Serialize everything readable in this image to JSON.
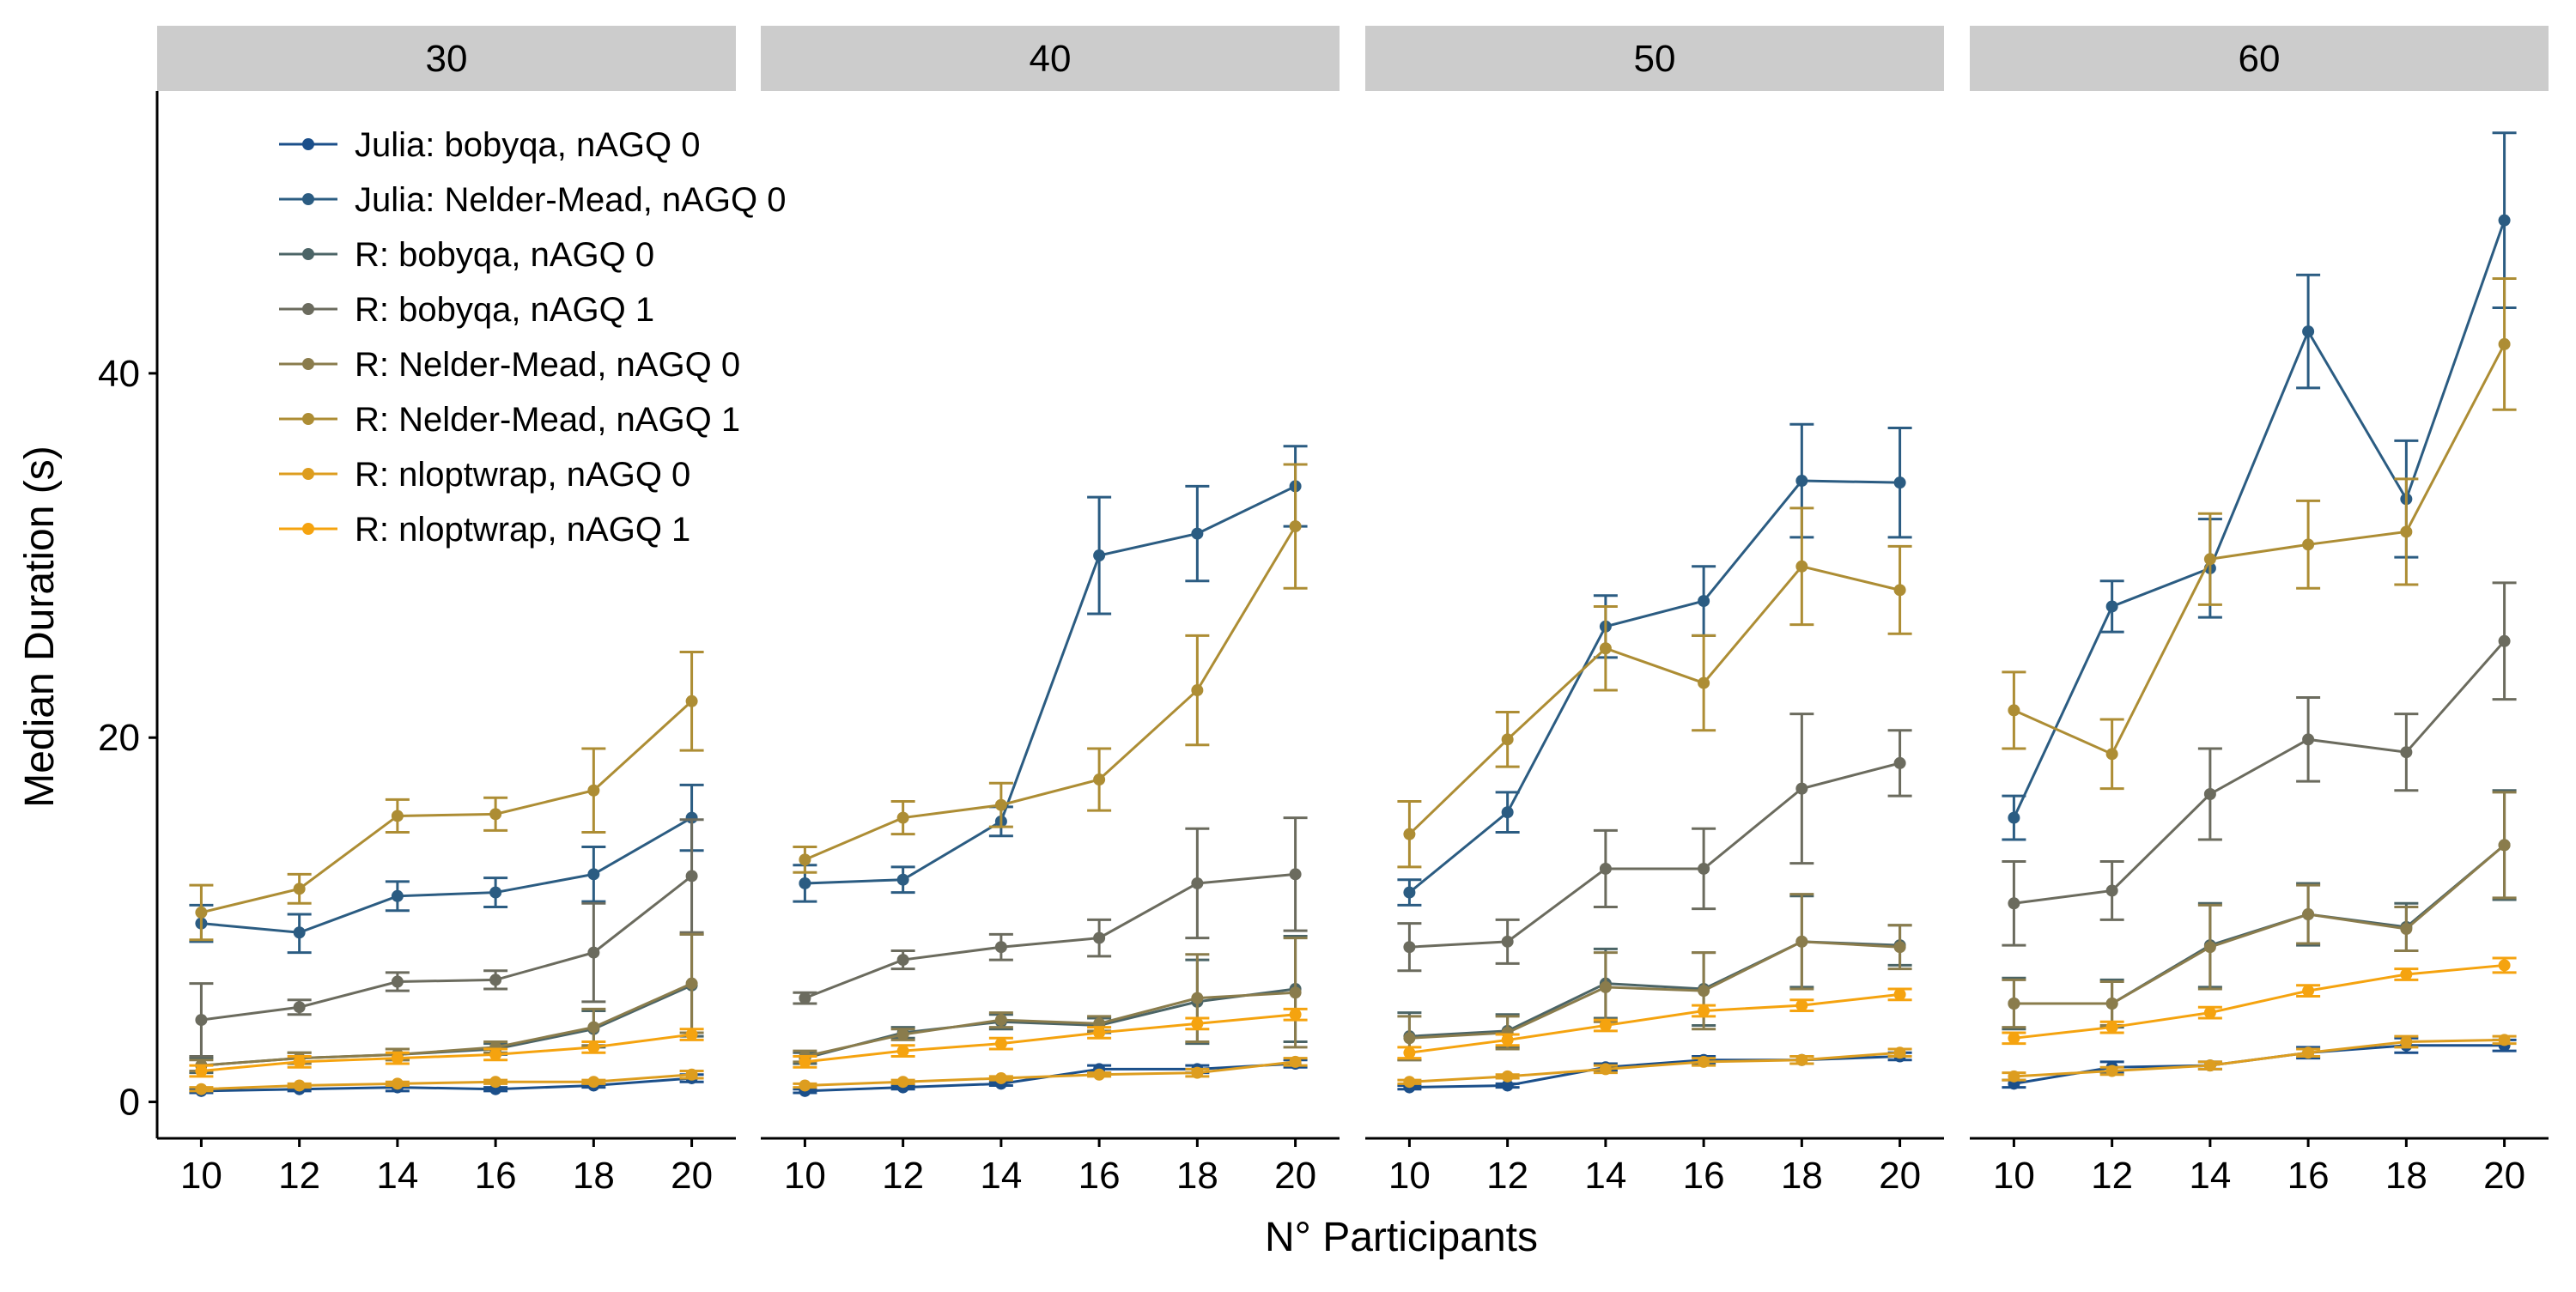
{
  "chart_data": {
    "type": "line",
    "xlabel": "N° Participants",
    "ylabel": "Median Duration (s)",
    "xlim": [
      9.1,
      20.9
    ],
    "ylim": [
      -2,
      55.5
    ],
    "x_ticks": [
      10,
      12,
      14,
      16,
      18,
      20
    ],
    "y_ticks": [
      0,
      20,
      40
    ],
    "x": [
      10,
      12,
      14,
      16,
      18,
      20
    ],
    "legend_position": "top-left",
    "panels": [
      {
        "label": "30",
        "series": [
          {
            "name": "Julia: bobyqa, nAGQ 0",
            "color": "#1b4f8a",
            "values": [
              0.6,
              0.7,
              0.8,
              0.7,
              0.9,
              1.3
            ],
            "err_lo": [
              0.5,
              0.6,
              0.6,
              0.6,
              0.8,
              1.1
            ],
            "err_hi": [
              0.7,
              0.8,
              0.9,
              0.8,
              1.0,
              1.5
            ]
          },
          {
            "name": "Julia: Nelder-Mead, nAGQ 0",
            "color": "#2b5c82",
            "values": [
              9.8,
              9.3,
              11.3,
              11.5,
              12.5,
              15.6
            ],
            "err_lo": [
              8.8,
              8.2,
              10.5,
              10.7,
              11.0,
              13.8
            ],
            "err_hi": [
              10.8,
              10.3,
              12.1,
              12.3,
              14.0,
              17.4
            ]
          },
          {
            "name": "R: bobyqa, nAGQ 0",
            "color": "#4b6466",
            "values": [
              2.0,
              2.4,
              2.6,
              2.9,
              4.0,
              6.4
            ],
            "err_lo": [
              1.6,
              2.1,
              2.3,
              2.6,
              3.0,
              3.6
            ],
            "err_hi": [
              2.4,
              2.7,
              2.9,
              3.2,
              5.0,
              9.2
            ]
          },
          {
            "name": "R: bobyqa, nAGQ 1",
            "color": "#6b6b5e",
            "values": [
              4.5,
              5.2,
              6.6,
              6.7,
              8.2,
              12.4
            ],
            "err_lo": [
              2.5,
              4.8,
              6.1,
              6.2,
              5.5,
              9.3
            ],
            "err_hi": [
              6.5,
              5.6,
              7.1,
              7.2,
              10.9,
              15.5
            ]
          },
          {
            "name": "R: Nelder-Mead, nAGQ 0",
            "color": "#8a7c4c",
            "values": [
              2.0,
              2.4,
              2.6,
              3.0,
              4.1,
              6.5
            ],
            "err_lo": [
              1.7,
              2.1,
              2.3,
              2.7,
              3.1,
              3.8
            ],
            "err_hi": [
              2.3,
              2.7,
              2.9,
              3.3,
              5.1,
              9.2
            ]
          },
          {
            "name": "R: Nelder-Mead, nAGQ 1",
            "color": "#ad8d34",
            "values": [
              10.4,
              11.7,
              15.7,
              15.8,
              17.1,
              22.0
            ],
            "err_lo": [
              8.9,
              10.9,
              14.8,
              14.9,
              14.8,
              19.3
            ],
            "err_hi": [
              11.9,
              12.5,
              16.6,
              16.7,
              19.4,
              24.7
            ]
          },
          {
            "name": "R: nloptwrap, nAGQ 0",
            "color": "#dd9d1f",
            "values": [
              0.7,
              0.9,
              1.0,
              1.1,
              1.1,
              1.5
            ],
            "err_lo": [
              0.6,
              0.8,
              0.9,
              1.0,
              1.0,
              1.3
            ],
            "err_hi": [
              0.8,
              1.0,
              1.1,
              1.2,
              1.2,
              1.7
            ]
          },
          {
            "name": "R: nloptwrap, nAGQ 1",
            "color": "#f5a30f",
            "values": [
              1.7,
              2.2,
              2.4,
              2.6,
              3.0,
              3.7
            ],
            "err_lo": [
              1.4,
              1.9,
              2.1,
              2.3,
              2.7,
              3.4
            ],
            "err_hi": [
              2.0,
              2.5,
              2.7,
              2.9,
              3.3,
              4.0
            ]
          }
        ]
      },
      {
        "label": "40",
        "series": [
          {
            "name": "Julia: bobyqa, nAGQ 0",
            "color": "#1b4f8a",
            "values": [
              0.6,
              0.8,
              1.0,
              1.8,
              1.8,
              2.1
            ],
            "err_lo": [
              0.5,
              0.7,
              0.9,
              1.6,
              1.6,
              1.9
            ],
            "err_hi": [
              0.7,
              0.9,
              1.1,
              2.0,
              2.0,
              2.3
            ]
          },
          {
            "name": "Julia: Nelder-Mead, nAGQ 0",
            "color": "#2b5c82",
            "values": [
              12.0,
              12.2,
              15.4,
              30.0,
              31.2,
              33.8
            ],
            "err_lo": [
              11.0,
              11.5,
              14.6,
              26.8,
              28.6,
              31.6
            ],
            "err_hi": [
              13.0,
              12.9,
              16.2,
              33.2,
              33.8,
              36.0
            ]
          },
          {
            "name": "R: bobyqa, nAGQ 0",
            "color": "#4b6466",
            "values": [
              2.4,
              3.8,
              4.4,
              4.2,
              5.5,
              6.2
            ],
            "err_lo": [
              2.1,
              3.5,
              4.0,
              3.8,
              3.2,
              3.3
            ],
            "err_hi": [
              2.7,
              4.1,
              4.8,
              4.6,
              7.8,
              9.1
            ]
          },
          {
            "name": "R: bobyqa, nAGQ 1",
            "color": "#6b6b5e",
            "values": [
              5.7,
              7.8,
              8.5,
              9.0,
              12.0,
              12.5
            ],
            "err_lo": [
              5.4,
              7.3,
              7.8,
              8.0,
              9.0,
              9.4
            ],
            "err_hi": [
              6.0,
              8.3,
              9.2,
              10.0,
              15.0,
              15.6
            ]
          },
          {
            "name": "R: Nelder-Mead, nAGQ 0",
            "color": "#8a7c4c",
            "values": [
              2.5,
              3.7,
              4.5,
              4.3,
              5.7,
              6.0
            ],
            "err_lo": [
              2.2,
              3.4,
              4.1,
              3.9,
              3.3,
              3.0
            ],
            "err_hi": [
              2.8,
              4.0,
              4.9,
              4.7,
              8.1,
              9.0
            ]
          },
          {
            "name": "R: Nelder-Mead, nAGQ 1",
            "color": "#ad8d34",
            "values": [
              13.3,
              15.6,
              16.3,
              17.7,
              22.6,
              31.6
            ],
            "err_lo": [
              12.6,
              14.7,
              15.1,
              16.0,
              19.6,
              28.2
            ],
            "err_hi": [
              14.0,
              16.5,
              17.5,
              19.4,
              25.6,
              35.0
            ]
          },
          {
            "name": "R: nloptwrap, nAGQ 0",
            "color": "#dd9d1f",
            "values": [
              0.9,
              1.1,
              1.3,
              1.5,
              1.6,
              2.2
            ],
            "err_lo": [
              0.8,
              1.0,
              1.2,
              1.4,
              1.4,
              2.0
            ],
            "err_hi": [
              1.0,
              1.2,
              1.4,
              1.6,
              1.8,
              2.4
            ]
          },
          {
            "name": "R: nloptwrap, nAGQ 1",
            "color": "#f5a30f",
            "values": [
              2.2,
              2.8,
              3.2,
              3.8,
              4.3,
              4.8
            ],
            "err_lo": [
              1.9,
              2.5,
              2.9,
              3.5,
              4.0,
              4.5
            ],
            "err_hi": [
              2.5,
              3.1,
              3.5,
              4.1,
              4.6,
              5.1
            ]
          }
        ]
      },
      {
        "label": "50",
        "series": [
          {
            "name": "Julia: bobyqa, nAGQ 0",
            "color": "#1b4f8a",
            "values": [
              0.8,
              0.9,
              1.9,
              2.3,
              2.3,
              2.5
            ],
            "err_lo": [
              0.7,
              0.8,
              1.7,
              2.1,
              2.1,
              2.3
            ],
            "err_hi": [
              0.9,
              1.0,
              2.1,
              2.5,
              2.5,
              2.7
            ]
          },
          {
            "name": "Julia: Nelder-Mead, nAGQ 0",
            "color": "#2b5c82",
            "values": [
              11.5,
              15.9,
              26.1,
              27.5,
              34.1,
              34.0
            ],
            "err_lo": [
              10.8,
              14.8,
              24.4,
              25.6,
              31.0,
              31.0
            ],
            "err_hi": [
              12.2,
              17.0,
              27.8,
              29.4,
              37.2,
              37.0
            ]
          },
          {
            "name": "R: bobyqa, nAGQ 0",
            "color": "#4b6466",
            "values": [
              3.6,
              3.9,
              6.5,
              6.2,
              8.8,
              8.6
            ],
            "err_lo": [
              2.3,
              3.0,
              4.6,
              4.2,
              6.3,
              7.5
            ],
            "err_hi": [
              4.9,
              4.8,
              8.4,
              8.2,
              11.3,
              9.7
            ]
          },
          {
            "name": "R: bobyqa, nAGQ 1",
            "color": "#6b6b5e",
            "values": [
              8.5,
              8.8,
              12.8,
              12.8,
              17.2,
              18.6
            ],
            "err_lo": [
              7.2,
              7.6,
              10.7,
              10.6,
              13.1,
              16.8
            ],
            "err_hi": [
              9.8,
              10.0,
              14.9,
              15.0,
              21.3,
              20.4
            ]
          },
          {
            "name": "R: Nelder-Mead, nAGQ 0",
            "color": "#8a7c4c",
            "values": [
              3.5,
              3.8,
              6.3,
              6.1,
              8.8,
              8.5
            ],
            "err_lo": [
              2.3,
              2.9,
              4.4,
              4.0,
              6.2,
              7.3
            ],
            "err_hi": [
              4.7,
              4.7,
              8.2,
              8.2,
              11.4,
              9.7
            ]
          },
          {
            "name": "R: Nelder-Mead, nAGQ 1",
            "color": "#ad8d34",
            "values": [
              14.7,
              19.9,
              24.9,
              23.0,
              29.4,
              28.1
            ],
            "err_lo": [
              12.9,
              18.4,
              22.6,
              20.4,
              26.2,
              25.7
            ],
            "err_hi": [
              16.5,
              21.4,
              27.2,
              25.6,
              32.6,
              30.5
            ]
          },
          {
            "name": "R: nloptwrap, nAGQ 0",
            "color": "#dd9d1f",
            "values": [
              1.1,
              1.4,
              1.8,
              2.2,
              2.3,
              2.7
            ],
            "err_lo": [
              1.0,
              1.3,
              1.6,
              2.0,
              2.1,
              2.5
            ],
            "err_hi": [
              1.2,
              1.5,
              2.0,
              2.4,
              2.5,
              2.9
            ]
          },
          {
            "name": "R: nloptwrap, nAGQ 1",
            "color": "#f5a30f",
            "values": [
              2.7,
              3.4,
              4.2,
              5.0,
              5.3,
              5.9
            ],
            "err_lo": [
              2.4,
              3.1,
              3.9,
              4.7,
              5.0,
              5.6
            ],
            "err_hi": [
              3.0,
              3.7,
              4.5,
              5.3,
              5.6,
              6.2
            ]
          }
        ]
      },
      {
        "label": "60",
        "series": [
          {
            "name": "Julia: bobyqa, nAGQ 0",
            "color": "#1b4f8a",
            "values": [
              1.0,
              1.9,
              2.0,
              2.7,
              3.1,
              3.1
            ],
            "err_lo": [
              0.8,
              1.6,
              1.8,
              2.4,
              2.7,
              2.8
            ],
            "err_hi": [
              1.2,
              2.2,
              2.2,
              3.0,
              3.5,
              3.4
            ]
          },
          {
            "name": "Julia: Nelder-Mead, nAGQ 0",
            "color": "#2b5c82",
            "values": [
              15.6,
              27.2,
              29.3,
              42.3,
              33.1,
              48.4
            ],
            "err_lo": [
              14.4,
              25.8,
              26.6,
              39.2,
              29.9,
              43.6
            ],
            "err_hi": [
              16.8,
              28.6,
              32.0,
              45.4,
              36.3,
              53.2
            ]
          },
          {
            "name": "R: bobyqa, nAGQ 0",
            "color": "#4b6466",
            "values": [
              5.4,
              5.4,
              8.6,
              10.3,
              9.6,
              14.1
            ],
            "err_lo": [
              4.0,
              4.1,
              6.3,
              8.6,
              8.3,
              11.1
            ],
            "err_hi": [
              6.8,
              6.7,
              10.9,
              12.0,
              10.9,
              17.1
            ]
          },
          {
            "name": "R: bobyqa, nAGQ 1",
            "color": "#6b6b5e",
            "values": [
              10.9,
              11.6,
              16.9,
              19.9,
              19.2,
              25.3
            ],
            "err_lo": [
              8.6,
              10.0,
              14.4,
              17.6,
              17.1,
              22.1
            ],
            "err_hi": [
              13.2,
              13.2,
              19.4,
              22.2,
              21.3,
              28.5
            ]
          },
          {
            "name": "R: Nelder-Mead, nAGQ 0",
            "color": "#8a7c4c",
            "values": [
              5.4,
              5.4,
              8.5,
              10.3,
              9.5,
              14.1
            ],
            "err_lo": [
              4.1,
              4.2,
              6.2,
              8.7,
              8.3,
              11.2
            ],
            "err_hi": [
              6.7,
              6.6,
              10.8,
              11.9,
              10.7,
              17.0
            ]
          },
          {
            "name": "R: Nelder-Mead, nAGQ 1",
            "color": "#ad8d34",
            "values": [
              21.5,
              19.1,
              29.8,
              30.6,
              31.3,
              41.6
            ],
            "err_lo": [
              19.4,
              17.2,
              27.3,
              28.2,
              28.4,
              38.0
            ],
            "err_hi": [
              23.6,
              21.0,
              32.3,
              33.0,
              34.2,
              45.2
            ]
          },
          {
            "name": "R: nloptwrap, nAGQ 0",
            "color": "#dd9d1f",
            "values": [
              1.4,
              1.7,
              2.0,
              2.7,
              3.3,
              3.4
            ],
            "err_lo": [
              1.2,
              1.5,
              1.8,
              2.5,
              3.0,
              3.2
            ],
            "err_hi": [
              1.6,
              1.9,
              2.2,
              2.9,
              3.6,
              3.6
            ]
          },
          {
            "name": "R: nloptwrap, nAGQ 1",
            "color": "#f5a30f",
            "values": [
              3.5,
              4.1,
              4.9,
              6.1,
              7.0,
              7.5
            ],
            "err_lo": [
              3.2,
              3.8,
              4.6,
              5.8,
              6.7,
              7.1
            ],
            "err_hi": [
              3.8,
              4.4,
              5.2,
              6.4,
              7.3,
              7.9
            ]
          }
        ]
      }
    ]
  }
}
